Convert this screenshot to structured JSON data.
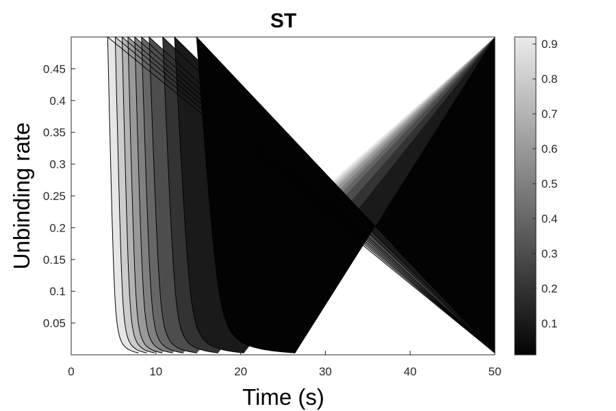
{
  "chart_data": {
    "type": "contour",
    "title": "ST",
    "xlabel": "Time (s)",
    "ylabel": "Unbinding rate",
    "xlim": [
      0,
      50
    ],
    "ylim": [
      0,
      0.5
    ],
    "x_ticks": [
      0,
      10,
      20,
      30,
      40,
      50
    ],
    "x_tick_labels": [
      "0",
      "10",
      "20",
      "30",
      "40",
      "50"
    ],
    "y_ticks": [
      0.05,
      0.1,
      0.15,
      0.2,
      0.25,
      0.3,
      0.35,
      0.4,
      0.45
    ],
    "y_tick_labels": [
      "0.05",
      "0.1",
      "0.15",
      "0.2",
      "0.25",
      "0.3",
      "0.35",
      "0.4",
      "0.45"
    ],
    "colormap": "gray",
    "colorbar": {
      "range": [
        0.01,
        0.92
      ],
      "ticks": [
        0.1,
        0.2,
        0.3,
        0.4,
        0.5,
        0.6,
        0.7,
        0.8,
        0.9
      ],
      "tick_labels": [
        "0.1",
        "0.2",
        "0.3",
        "0.4",
        "0.5",
        "0.6",
        "0.7",
        "0.8",
        "0.9"
      ]
    },
    "contour_levels": [
      {
        "level": 0.92,
        "time_at_top": 4.3,
        "time_at_bottom": 10
      },
      {
        "level": 0.9,
        "time_at_top": 5.2,
        "time_at_bottom": 11
      },
      {
        "level": 0.8,
        "time_at_top": 6,
        "time_at_bottom": 12
      },
      {
        "level": 0.7,
        "time_at_top": 6.7,
        "time_at_bottom": 13
      },
      {
        "level": 0.6,
        "time_at_top": 7.5,
        "time_at_bottom": 14.5
      },
      {
        "level": 0.5,
        "time_at_top": 8.3,
        "time_at_bottom": 16
      },
      {
        "level": 0.4,
        "time_at_top": 9.2,
        "time_at_bottom": 18
      },
      {
        "level": 0.3,
        "time_at_top": 10.8,
        "time_at_bottom": 21
      },
      {
        "level": 0.2,
        "time_at_top": 12.2,
        "time_at_bottom": 25
      },
      {
        "level": 0.1,
        "time_at_top": 14.8,
        "time_at_bottom": 33
      }
    ]
  }
}
